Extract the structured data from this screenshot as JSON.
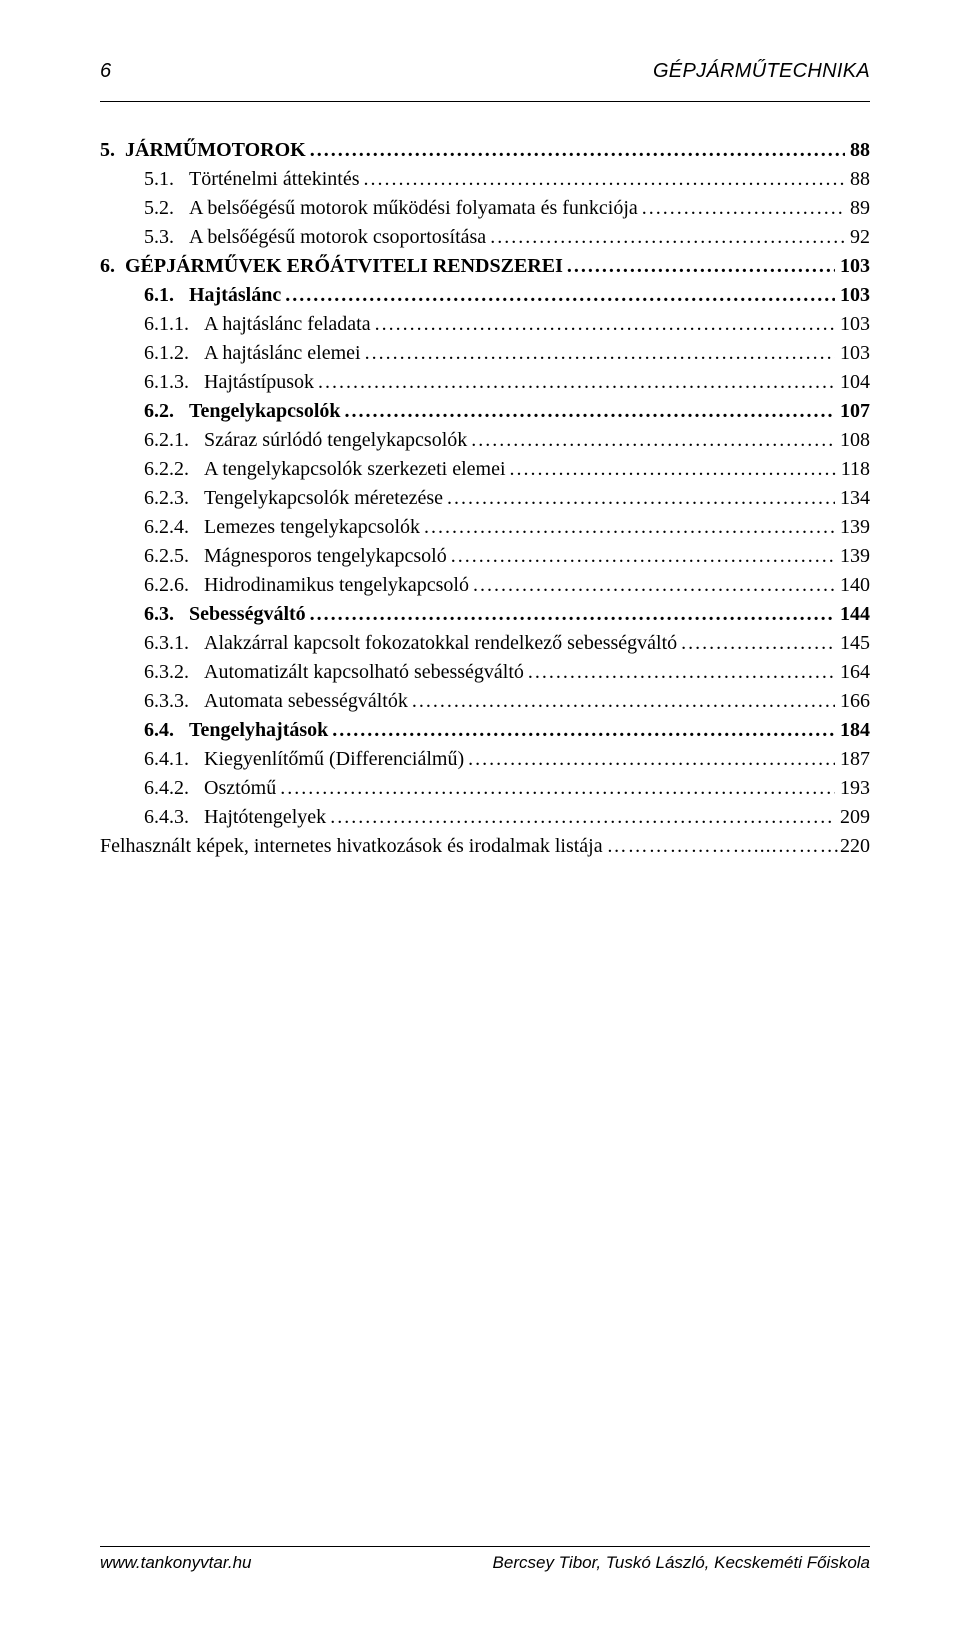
{
  "header": {
    "page_number": "6",
    "title": "GÉPJÁRMŰTECHNIKA"
  },
  "toc": [
    {
      "num": "5.",
      "title": "JÁRMŰMOTOROK",
      "page": "88",
      "bold": true,
      "indent": 0
    },
    {
      "num": "5.1.",
      "title": "Történelmi áttekintés",
      "page": "88",
      "bold": false,
      "indent": 1
    },
    {
      "num": "5.2.",
      "title": "A belsőégésű motorok működési folyamata és funkciója",
      "page": "89",
      "bold": false,
      "indent": 1
    },
    {
      "num": "5.3.",
      "title": "A belsőégésű motorok csoportosítása",
      "page": "92",
      "bold": false,
      "indent": 1
    },
    {
      "num": "6.",
      "title": "GÉPJÁRMŰVEK ERŐÁTVITELI RENDSZEREI",
      "page": "103",
      "bold": true,
      "indent": 0
    },
    {
      "num": "6.1.",
      "title": "Hajtáslánc",
      "page": "103",
      "bold": true,
      "indent": 1
    },
    {
      "num": "6.1.1.",
      "title": "A hajtáslánc feladata",
      "page": "103",
      "bold": false,
      "indent": 2
    },
    {
      "num": "6.1.2.",
      "title": "A hajtáslánc elemei",
      "page": "103",
      "bold": false,
      "indent": 2
    },
    {
      "num": "6.1.3.",
      "title": "Hajtástípusok",
      "page": "104",
      "bold": false,
      "indent": 2
    },
    {
      "num": "6.2.",
      "title": "Tengelykapcsolók",
      "page": "107",
      "bold": true,
      "indent": 1
    },
    {
      "num": "6.2.1.",
      "title": "Száraz súrlódó tengelykapcsolók",
      "page": "108",
      "bold": false,
      "indent": 2
    },
    {
      "num": "6.2.2.",
      "title": "A tengelykapcsolók szerkezeti elemei",
      "page": "118",
      "bold": false,
      "indent": 2
    },
    {
      "num": "6.2.3.",
      "title": "Tengelykapcsolók méretezése",
      "page": "134",
      "bold": false,
      "indent": 2
    },
    {
      "num": "6.2.4.",
      "title": "Lemezes tengelykapcsolók",
      "page": "139",
      "bold": false,
      "indent": 2
    },
    {
      "num": "6.2.5.",
      "title": "Mágnesporos tengelykapcsoló",
      "page": "139",
      "bold": false,
      "indent": 2
    },
    {
      "num": "6.2.6.",
      "title": "Hidrodinamikus tengelykapcsoló",
      "page": "140",
      "bold": false,
      "indent": 2
    },
    {
      "num": "6.3.",
      "title": "Sebességváltó",
      "page": "144",
      "bold": true,
      "indent": 1
    },
    {
      "num": "6.3.1.",
      "title": "Alakzárral kapcsolt fokozatokkal rendelkező sebességváltó",
      "page": "145",
      "bold": false,
      "indent": 2
    },
    {
      "num": "6.3.2.",
      "title": "Automatizált kapcsolható sebességváltó",
      "page": "164",
      "bold": false,
      "indent": 2
    },
    {
      "num": "6.3.3.",
      "title": "Automata sebességváltók",
      "page": "166",
      "bold": false,
      "indent": 2
    },
    {
      "num": "6.4.",
      "title": "Tengelyhajtások",
      "page": "184",
      "bold": true,
      "indent": 1
    },
    {
      "num": "6.4.1.",
      "title": "Kiegyenlítőmű (Differenciálmű)",
      "page": "187",
      "bold": false,
      "indent": 2
    },
    {
      "num": "6.4.2.",
      "title": "Osztómű",
      "page": "193",
      "bold": false,
      "indent": 2
    },
    {
      "num": "6.4.3.",
      "title": "Hajtótengelyek",
      "page": "209",
      "bold": false,
      "indent": 2
    }
  ],
  "closing": {
    "label": "Felhasznált képek, internetes hivatkozások és irodalmak listája",
    "page": "220"
  },
  "footer": {
    "left": "www.tankonyvtar.hu",
    "right": "Bercsey Tibor, Tuskó László, Kecskeméti Főiskola"
  }
}
